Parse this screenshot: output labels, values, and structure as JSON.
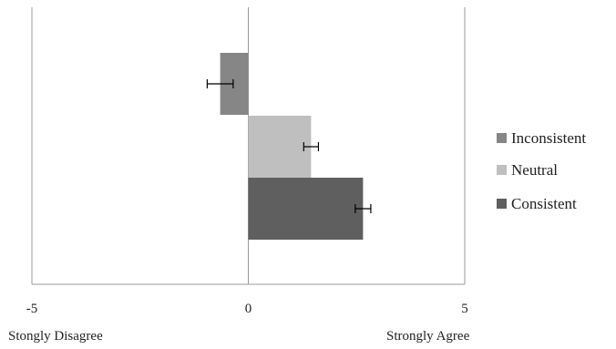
{
  "chart_data": {
    "type": "bar",
    "orientation": "horizontal",
    "title": "",
    "xlabel": "",
    "ylabel": "",
    "xlim": [
      -5,
      5
    ],
    "x_ticks": [
      "-5",
      "0",
      "5"
    ],
    "grid": false,
    "legend_position": "right",
    "series": [
      {
        "name": "Inconsistent",
        "value": -0.65,
        "error": 0.3,
        "color": "#868686"
      },
      {
        "name": "Neutral",
        "value": 1.45,
        "error": 0.17,
        "color": "#bfbfbf"
      },
      {
        "name": "Consistent",
        "value": 2.65,
        "error": 0.18,
        "color": "#5f5f5f"
      }
    ],
    "scale_anchors": {
      "left": "Stongly Disagree",
      "right": "Strongly Agree"
    }
  }
}
